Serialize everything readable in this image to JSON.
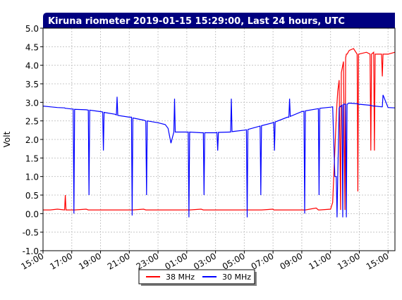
{
  "chart_data": {
    "type": "line",
    "title": "Kiruna riometer 2019-01-15 15:29:00, Last 24 hours, UTC",
    "y_label": "Volt",
    "x": [
      0,
      0.5,
      1,
      1.5,
      1.55,
      1.6,
      2,
      2.1,
      2.15,
      2.2,
      3,
      3.15,
      3.2,
      3.25,
      4,
      4.15,
      4.2,
      4.25,
      5,
      5.1,
      5.15,
      5.2,
      6,
      6.15,
      6.2,
      6.25,
      7,
      7.15,
      7.2,
      7.25,
      8,
      8.5,
      8.7,
      8.9,
      9.1,
      9.15,
      9.2,
      10,
      10.1,
      10.15,
      10.2,
      11,
      11.15,
      11.2,
      11.25,
      12,
      12.1,
      12.15,
      12.2,
      13,
      13.05,
      13.1,
      13.15,
      14,
      14.15,
      14.2,
      14.25,
      15,
      15.1,
      15.15,
      15.2,
      16,
      16.05,
      16.1,
      16.15,
      17,
      17.1,
      17.15,
      17.2,
      18,
      18.15,
      18.2,
      18.25,
      19,
      19.15,
      19.2,
      19.25,
      20,
      20.15,
      20.3,
      20.4,
      20.45,
      20.5,
      20.6,
      20.7,
      20.75,
      20.8,
      20.85,
      20.9,
      21.0,
      21.05,
      21.1,
      21.15,
      21.3,
      21.6,
      21.85,
      21.9,
      21.95,
      22.5,
      22.75,
      22.8,
      22.85,
      23.0,
      23.05,
      23.1,
      23.55,
      23.6,
      23.65,
      24,
      24.48
    ],
    "series": [
      {
        "name": "38 MHz",
        "color": "#ff0000",
        "values": [
          0.1,
          0.1,
          0.12,
          0.1,
          0.5,
          0.1,
          0.1,
          0.1,
          0.1,
          0.1,
          0.12,
          0.1,
          0.1,
          0.1,
          0.1,
          0.1,
          0.1,
          0.1,
          0.1,
          0.1,
          0.1,
          0.1,
          0.1,
          0.1,
          0.1,
          0.1,
          0.12,
          0.1,
          0.1,
          0.1,
          0.1,
          0.1,
          0.1,
          0.1,
          0.1,
          0.1,
          0.1,
          0.1,
          0.1,
          0.1,
          0.1,
          0.12,
          0.1,
          0.1,
          0.1,
          0.1,
          0.1,
          0.1,
          0.1,
          0.1,
          0.1,
          0.1,
          0.1,
          0.1,
          0.1,
          0.1,
          0.1,
          0.1,
          0.1,
          0.1,
          0.1,
          0.12,
          0.1,
          0.1,
          0.1,
          0.1,
          0.1,
          0.1,
          0.1,
          0.1,
          0.1,
          0.1,
          0.1,
          0.15,
          0.1,
          0.1,
          0.1,
          0.12,
          0.3,
          1.7,
          2.6,
          3.0,
          3.3,
          3.6,
          0.1,
          3.8,
          3.9,
          4.0,
          4.1,
          0.1,
          4.2,
          4.3,
          4.3,
          4.4,
          4.45,
          4.3,
          0.6,
          4.3,
          4.35,
          4.3,
          1.7,
          4.3,
          4.35,
          1.7,
          4.3,
          4.3,
          3.7,
          4.3,
          4.3,
          4.35
        ]
      },
      {
        "name": "30 MHz",
        "color": "#0000ff",
        "values": [
          2.9,
          2.88,
          2.86,
          2.85,
          2.84,
          2.84,
          2.82,
          2.82,
          0.0,
          2.81,
          2.8,
          2.79,
          0.5,
          2.79,
          2.75,
          2.74,
          1.7,
          2.73,
          2.68,
          2.66,
          3.15,
          2.65,
          2.6,
          2.6,
          -0.05,
          2.58,
          2.52,
          2.5,
          0.5,
          2.5,
          2.45,
          2.4,
          2.3,
          1.9,
          2.2,
          3.1,
          2.2,
          2.2,
          2.2,
          -0.1,
          2.2,
          2.18,
          2.18,
          0.5,
          2.18,
          2.18,
          2.19,
          1.7,
          2.19,
          2.2,
          2.2,
          3.1,
          2.21,
          2.25,
          2.26,
          -0.1,
          2.27,
          2.35,
          2.36,
          0.5,
          2.37,
          2.45,
          2.46,
          1.7,
          2.47,
          2.6,
          2.6,
          3.1,
          2.62,
          2.75,
          2.76,
          0.0,
          2.77,
          2.82,
          2.83,
          0.5,
          2.84,
          2.87,
          2.88,
          1.0,
          1.0,
          -0.1,
          1.0,
          2.85,
          2.9,
          2.9,
          2.92,
          -0.1,
          2.95,
          2.95,
          2.95,
          -0.1,
          2.95,
          2.98,
          2.97,
          2.96,
          2.96,
          2.95,
          2.93,
          2.92,
          2.92,
          2.91,
          2.9,
          2.9,
          2.9,
          2.88,
          2.88,
          3.2,
          2.86,
          2.85
        ]
      }
    ],
    "xlim": [
      0,
      24.48
    ],
    "xticks": [
      {
        "value": 0,
        "label": "15:00"
      },
      {
        "value": 2,
        "label": "17:00"
      },
      {
        "value": 4,
        "label": "19:00"
      },
      {
        "value": 6,
        "label": "21:00"
      },
      {
        "value": 8,
        "label": "23:00"
      },
      {
        "value": 10,
        "label": "01:00"
      },
      {
        "value": 12,
        "label": "03:00"
      },
      {
        "value": 14,
        "label": "05:00"
      },
      {
        "value": 16,
        "label": "07:00"
      },
      {
        "value": 18,
        "label": "09:00"
      },
      {
        "value": 20,
        "label": "11:00"
      },
      {
        "value": 22,
        "label": "13:00"
      },
      {
        "value": 24,
        "label": "15:00"
      }
    ],
    "ylim": [
      -1,
      5
    ],
    "yticks": [
      {
        "value": -1,
        "label": "-1.0"
      },
      -0.5,
      {
        "value": 0,
        "label": "0.0"
      },
      0.5,
      {
        "value": 1,
        "label": "1.0"
      },
      1.5,
      {
        "value": 2,
        "label": "2.0"
      },
      2.5,
      {
        "value": 3,
        "label": "3.0"
      },
      3.5,
      {
        "value": 4,
        "label": "4.0"
      },
      4.5,
      {
        "value": 5,
        "label": "5.0"
      }
    ],
    "grid": true,
    "legend": "bottom"
  }
}
